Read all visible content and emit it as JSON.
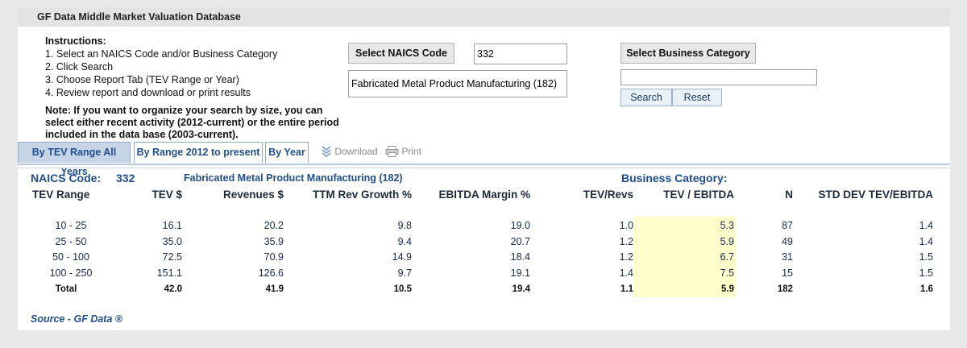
{
  "app": {
    "title": "GF Data Middle Market Valuation Database"
  },
  "instructions": {
    "heading": "Instructions:",
    "steps": [
      "1. Select an NAICS Code and/or Business Category",
      "2. Click Search",
      "3. Choose Report Tab (TEV Range or Year)",
      "4. Review report and download or print results"
    ],
    "note_lines": [
      "Note: If you want to organize your search by size, you can",
      "select either recent activity (2012-current) or the entire period",
      "included in the data base (2003-current)."
    ]
  },
  "naics": {
    "button_label": "Select NAICS Code",
    "code_value": "332",
    "description_value": "Fabricated Metal Product Manufacturing  (182)"
  },
  "business": {
    "button_label": "Select Business Category",
    "input_value": "",
    "search_label": "Search",
    "reset_label": "Reset"
  },
  "tabs": [
    {
      "label": "By TEV Range All Years",
      "active": true
    },
    {
      "label": "By Range 2012 to present",
      "active": false
    },
    {
      "label": "By Year",
      "active": false
    }
  ],
  "toolbar": {
    "download_label": "Download",
    "print_label": "Print"
  },
  "report": {
    "naics_label": "NAICS Code:",
    "naics_code": "332",
    "naics_desc": "Fabricated Metal Product Manufacturing (182)",
    "business_category_label": "Business Category:",
    "highlight_color": "#ffffcc",
    "columns": [
      "TEV Range",
      "TEV $",
      "Revenues $",
      "TTM Rev Growth %",
      "EBITDA Margin %",
      "TEV/Revs",
      "TEV / EBITDA",
      "N",
      "STD DEV TEV/EBITDA"
    ],
    "rows": [
      [
        "10 - 25",
        "16.1",
        "20.2",
        "9.8",
        "19.0",
        "1.0",
        "5.3",
        "87",
        "1.4"
      ],
      [
        "25 - 50",
        "35.0",
        "35.9",
        "9.4",
        "20.7",
        "1.2",
        "5.9",
        "49",
        "1.4"
      ],
      [
        "50 - 100",
        "72.5",
        "70.9",
        "14.9",
        "18.4",
        "1.2",
        "6.7",
        "31",
        "1.5"
      ],
      [
        "100 - 250",
        "151.1",
        "126.6",
        "9.7",
        "19.1",
        "1.4",
        "7.5",
        "15",
        "1.5"
      ]
    ],
    "total_row": [
      "Total",
      "42.0",
      "41.9",
      "10.5",
      "19.4",
      "1.1",
      "5.9",
      "182",
      "1.6"
    ]
  },
  "source": "Source - GF Data ®"
}
